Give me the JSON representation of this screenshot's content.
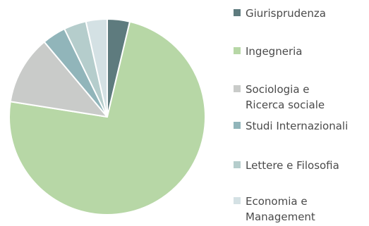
{
  "chart_data": {
    "type": "pie",
    "title": "",
    "legend_position": "right",
    "categories": [
      "Giurisprudenza",
      "Ingegneria",
      "Sociologia e Ricerca sociale",
      "Studi Internazionali",
      "Lettere e Filosofia",
      "Economia e Management"
    ],
    "values": [
      3.7,
      73.8,
      11.4,
      3.9,
      3.7,
      3.5
    ],
    "colors": [
      "#5e7b7e",
      "#b7d7a6",
      "#c9cbc9",
      "#91b5ba",
      "#b5cdcc",
      "#d4e1e4"
    ]
  }
}
